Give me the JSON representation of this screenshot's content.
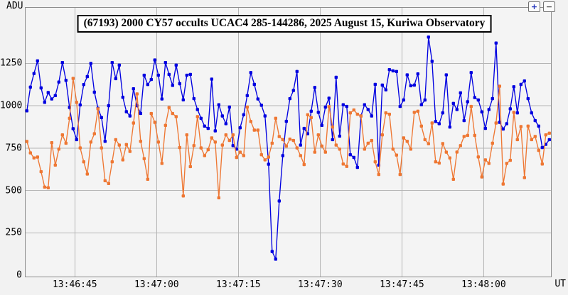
{
  "header": {
    "y_axis_unit": "ADU",
    "x_axis_unit": "UT",
    "buttons": {
      "zoom_in": "+",
      "zoom_out": "−"
    }
  },
  "colors": {
    "background": "#f2f2f2",
    "plot_background": "#f4f4f4",
    "gridline": "#b5b5b5",
    "plot_border": "#8c8c8c",
    "blue_series": "#0000e0",
    "orange_series": "#ee7733"
  },
  "chart_data": {
    "type": "line",
    "title": "(67193) 2000 CY57 occults UCAC4 285-144286, 2025 August 15, Kuriwa Observatory",
    "xlabel": "UT",
    "ylabel": "ADU",
    "grid": true,
    "legend_position": "none",
    "x_axis": {
      "seconds_reference": "seconds after 13:46:00 UT",
      "tick_labels": [
        "13:46:45",
        "13:47:00",
        "13:47:15",
        "13:47:30",
        "13:47:45",
        "13:48:00"
      ],
      "tick_seconds": [
        45,
        60,
        75,
        90,
        105,
        120
      ],
      "range_seconds": [
        35.9,
        132.4
      ]
    },
    "y_axis": {
      "tick_values": [
        0,
        250,
        500,
        750,
        1000,
        1250
      ],
      "tick_labels": [
        "0",
        "250",
        "500",
        "750",
        "1000",
        "1250"
      ],
      "range": [
        -10,
        1580
      ]
    },
    "sampling": {
      "first_point_seconds": 36.2,
      "step_seconds": 0.652
    },
    "series": [
      {
        "name": "target-star-blue",
        "color": "#0000e0",
        "marker": "square",
        "values": [
          970,
          1110,
          1190,
          1265,
          1105,
          1020,
          1078,
          1040,
          1060,
          1140,
          1255,
          1150,
          990,
          865,
          800,
          1005,
          1125,
          1172,
          1250,
          1080,
          985,
          930,
          790,
          1000,
          1255,
          1160,
          1240,
          1050,
          965,
          940,
          1100,
          1000,
          955,
          1180,
          1125,
          1155,
          1270,
          1180,
          1040,
          1255,
          1185,
          1120,
          1240,
          1130,
          1035,
          1180,
          1185,
          1042,
          978,
          926,
          880,
          866,
          1157,
          852,
          1006,
          940,
          894,
          992,
          765,
          744,
          870,
          947,
          1060,
          1196,
          1126,
          1040,
          1003,
          940,
          655,
          140,
          95,
          438,
          706,
          908,
          1042,
          1090,
          1202,
          768,
          866,
          835,
          968,
          1108,
          961,
          884,
          992,
          1045,
          800,
          1168,
          821,
          1006,
          996,
          711,
          695,
          636,
          940,
          1006,
          978,
          940,
          1126,
          650,
          1122,
          1094,
          1213,
          1206,
          1202,
          996,
          1034,
          1182,
          1118,
          1122,
          1188,
          1006,
          1034,
          1405,
          1262,
          907,
          894,
          958,
          1182,
          874,
          1014,
          978,
          1076,
          912,
          1024,
          1196,
          1048,
          1034,
          964,
          866,
          978,
          1042,
          1370,
          902,
          863,
          894,
          982,
          1112,
          958,
          1126,
          1146,
          1042,
          958,
          912,
          880,
          753,
          772,
          800
        ]
      },
      {
        "name": "comparison-star-orange",
        "color": "#ee7733",
        "marker": "square",
        "values": [
          789,
          722,
          692,
          697,
          611,
          520,
          516,
          782,
          650,
          744,
          828,
          779,
          926,
          1161,
          1020,
          751,
          669,
          597,
          786,
          835,
          982,
          751,
          558,
          541,
          669,
          800,
          768,
          681,
          771,
          730,
          898,
          1070,
          790,
          688,
          566,
          954,
          902,
          786,
          660,
          884,
          989,
          954,
          936,
          753,
          468,
          828,
          641,
          765,
          936,
          751,
          706,
          741,
          810,
          786,
          457,
          768,
          828,
          795,
          828,
          695,
          726,
          706,
          992,
          907,
          856,
          856,
          711,
          681,
          697,
          779,
          926,
          818,
          800,
          762,
          803,
          795,
          751,
          706,
          653,
          947,
          930,
          726,
          828,
          762,
          726,
          995,
          874,
          768,
          744,
          656,
          642,
          958,
          975,
          950,
          940,
          744,
          779,
          795,
          669,
          594,
          828,
          958,
          950,
          744,
          709,
          594,
          810,
          790,
          744,
          961,
          968,
          880,
          800,
          776,
          898,
          669,
          662,
          777,
          726,
          692,
          566,
          727,
          765,
          819,
          825,
          996,
          825,
          698,
          580,
          681,
          660,
          779,
          898,
          1115,
          538,
          660,
          678,
          961,
          800,
          877,
          576,
          880,
          800,
          819,
          737,
          656,
          828,
          838
        ]
      }
    ]
  }
}
